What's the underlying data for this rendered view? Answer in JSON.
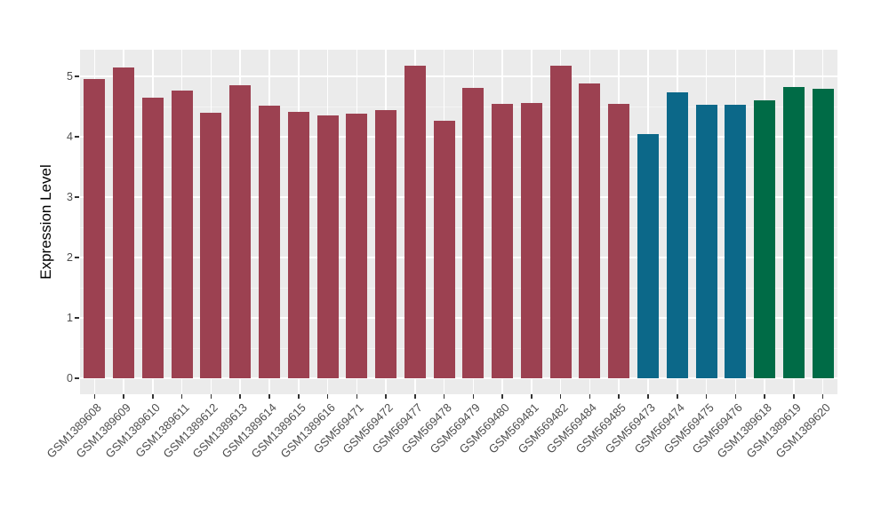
{
  "chart_data": {
    "type": "bar",
    "title": "",
    "xlabel": "",
    "ylabel": "Expression Level",
    "ylim": [
      0,
      5.45
    ],
    "yticks": [
      0,
      1,
      2,
      3,
      4,
      5
    ],
    "grid": "horizontal major white + minor light, vertical major white at each category, gray panel, no legend",
    "legend_position": "none",
    "categories": [
      "GSM1389608",
      "GSM1389609",
      "GSM1389610",
      "GSM1389611",
      "GSM1389612",
      "GSM1389613",
      "GSM1389614",
      "GSM1389615",
      "GSM1389616",
      "GSM569471",
      "GSM569472",
      "GSM569477",
      "GSM569478",
      "GSM569479",
      "GSM569480",
      "GSM569481",
      "GSM569482",
      "GSM569484",
      "GSM569485",
      "GSM569473",
      "GSM569474",
      "GSM569475",
      "GSM569476",
      "GSM1389618",
      "GSM1389619",
      "GSM1389620"
    ],
    "values": [
      4.95,
      5.14,
      4.64,
      4.76,
      4.39,
      4.85,
      4.51,
      4.41,
      4.36,
      4.38,
      4.44,
      5.17,
      4.26,
      4.81,
      4.54,
      4.56,
      5.18,
      4.88,
      4.55,
      4.05,
      4.73,
      4.53,
      4.53,
      4.6,
      4.83,
      4.79
    ],
    "bar_groups": [
      "maroon",
      "maroon",
      "maroon",
      "maroon",
      "maroon",
      "maroon",
      "maroon",
      "maroon",
      "maroon",
      "maroon",
      "maroon",
      "maroon",
      "maroon",
      "maroon",
      "maroon",
      "maroon",
      "maroon",
      "maroon",
      "maroon",
      "teal",
      "teal",
      "teal",
      "teal",
      "green",
      "green",
      "green"
    ],
    "palette": {
      "maroon": "#9C4151",
      "teal": "#0C6889",
      "green": "#006B46"
    },
    "colors": {
      "panel_bg": "#EBEBEB",
      "grid_major": "#FFFFFF",
      "grid_minor": "#F4F4F4",
      "tick_mark": "#333333",
      "tick_label": "#4D4D4D",
      "axis_title": "#000000",
      "background": "#FFFFFF"
    }
  }
}
